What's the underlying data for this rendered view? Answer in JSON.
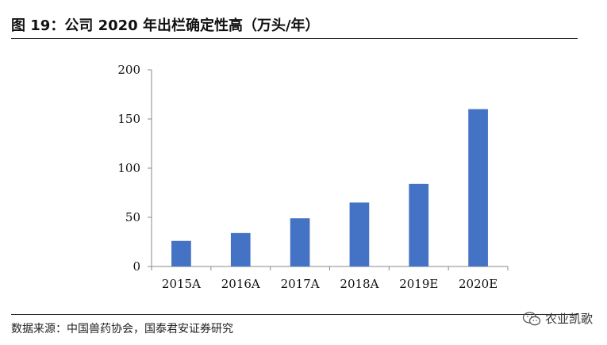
{
  "figure": {
    "title": "图 19：公司 2020 年出栏确定性高（万头/年）",
    "source": "数据来源：中国兽药协会，国泰君安证券研究",
    "watermark": "农业凯歌"
  },
  "colors": {
    "bar": "#4472C4",
    "axis": "#888888",
    "text": "#111111"
  },
  "chart_data": {
    "type": "bar",
    "title": "图 19：公司 2020 年出栏确定性高（万头/年）",
    "categories": [
      "2015A",
      "2016A",
      "2017A",
      "2018A",
      "2019E",
      "2020E"
    ],
    "values": [
      26,
      34,
      49,
      65,
      84,
      160
    ],
    "xlabel": "",
    "ylabel": "",
    "ylim": [
      0,
      200
    ],
    "yticks": [
      0,
      50,
      100,
      150,
      200
    ],
    "grid": false,
    "legend": "none"
  }
}
